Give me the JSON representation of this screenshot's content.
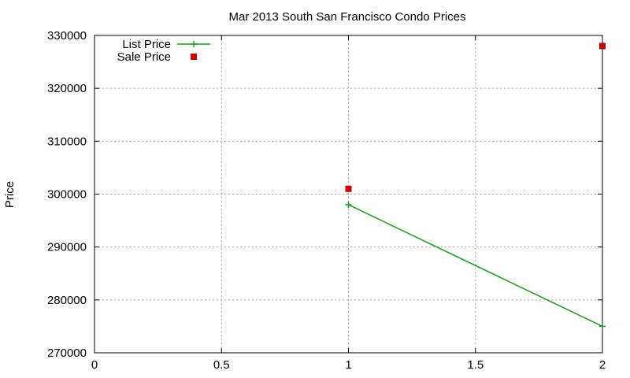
{
  "chart_data": {
    "type": "scatter",
    "title": "Mar 2013 South San Francisco Condo Prices",
    "xlabel": "",
    "ylabel": "Price",
    "xlim": [
      0,
      2
    ],
    "ylim": [
      270000,
      330000
    ],
    "x_ticks": [
      0,
      0.5,
      1,
      1.5,
      2
    ],
    "x_tick_labels": [
      "0",
      "0.5",
      "1",
      "1.5",
      "2"
    ],
    "y_ticks": [
      270000,
      280000,
      290000,
      300000,
      310000,
      320000,
      330000
    ],
    "y_tick_labels": [
      "270000",
      "280000",
      "290000",
      "300000",
      "310000",
      "320000",
      "330000"
    ],
    "grid": true,
    "legend_position": "top-left",
    "series": [
      {
        "name": "List Price",
        "style": "line+cross",
        "color": "#1a9a1a",
        "points": [
          {
            "x": 1,
            "y": 298000
          },
          {
            "x": 2,
            "y": 275000
          }
        ]
      },
      {
        "name": "Sale Price",
        "style": "square",
        "color": "#cc0000",
        "points": [
          {
            "x": 1,
            "y": 301000
          },
          {
            "x": 2,
            "y": 328000
          }
        ]
      }
    ]
  }
}
